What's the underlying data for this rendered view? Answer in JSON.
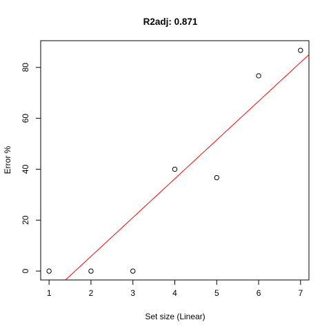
{
  "chart_data": {
    "type": "scatter",
    "title": "R2adj:  0.871",
    "xlabel": "Set size (Linear)",
    "ylabel": "Error %",
    "xlim": [
      0.8,
      7.2
    ],
    "ylim": [
      -3.5,
      90.5
    ],
    "x_ticks": [
      1,
      2,
      3,
      4,
      5,
      6,
      7
    ],
    "y_ticks": [
      0,
      20,
      40,
      60,
      80
    ],
    "grid": false,
    "legend": "none",
    "series": [
      {
        "x": [
          1,
          2,
          3,
          4,
          5,
          6,
          7
        ],
        "y": [
          0,
          0,
          0,
          40,
          36.7,
          76.7,
          86.7
        ],
        "marker": "open-circle",
        "color": "#000000"
      }
    ],
    "fit_line": {
      "type": "linear",
      "slope": 15.24,
      "intercept": -24.7,
      "color": "#ff0000"
    }
  }
}
